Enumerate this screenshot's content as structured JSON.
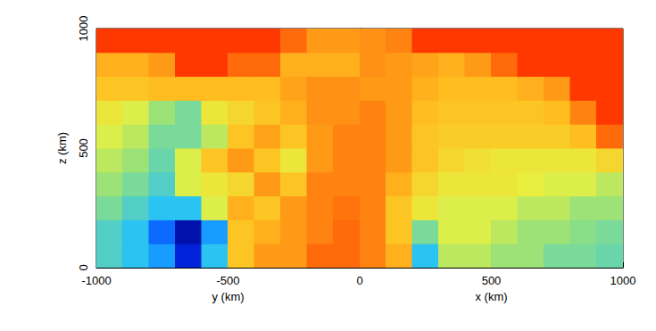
{
  "chart_data": [
    {
      "type": "heatmap",
      "x_label": "y (km)",
      "y_label": "z (km)",
      "xlim": [
        -1000,
        0
      ],
      "xticks": [
        -1000,
        -500,
        0
      ],
      "ylim": [
        0,
        1000
      ],
      "yticks": [
        0,
        500,
        1000
      ],
      "color_range": [
        0,
        1
      ],
      "x": [
        -950,
        -850,
        -750,
        -650,
        -550,
        -450,
        -350,
        -250,
        -150,
        -50
      ],
      "y": [
        50,
        150,
        250,
        350,
        450,
        550,
        650,
        750,
        850,
        950
      ],
      "cells": [
        [
          0.35,
          0.3,
          0.25,
          0.1,
          0.3,
          0.7,
          0.8,
          0.8,
          0.9,
          0.9
        ],
        [
          0.35,
          0.3,
          0.2,
          0.05,
          0.25,
          0.7,
          0.75,
          0.8,
          0.85,
          0.9
        ],
        [
          0.4,
          0.35,
          0.3,
          0.3,
          0.55,
          0.75,
          0.7,
          0.8,
          0.85,
          0.88
        ],
        [
          0.45,
          0.4,
          0.35,
          0.55,
          0.6,
          0.65,
          0.8,
          0.7,
          0.85,
          0.85
        ],
        [
          0.5,
          0.45,
          0.38,
          0.55,
          0.7,
          0.8,
          0.7,
          0.6,
          0.8,
          0.85
        ],
        [
          0.55,
          0.5,
          0.4,
          0.4,
          0.5,
          0.7,
          0.78,
          0.7,
          0.8,
          0.85
        ],
        [
          0.6,
          0.55,
          0.45,
          0.4,
          0.6,
          0.65,
          0.7,
          0.75,
          0.82,
          0.82
        ],
        [
          0.7,
          0.7,
          0.72,
          0.72,
          0.72,
          0.72,
          0.72,
          0.78,
          0.82,
          0.82
        ],
        [
          0.75,
          0.75,
          0.8,
          1,
          1,
          0.9,
          0.9,
          0.75,
          0.75,
          0.75
        ],
        [
          1,
          1,
          1,
          1,
          1,
          1,
          1,
          0.9,
          0.8,
          0.8
        ]
      ]
    },
    {
      "type": "heatmap",
      "x_label": "x (km)",
      "xlim": [
        0,
        1000
      ],
      "xticks": [
        500,
        1000
      ],
      "ylim": [
        0,
        1000
      ],
      "yticks": [
        0,
        500,
        1000
      ],
      "tick_labels": "x",
      "color_range": [
        0,
        1
      ],
      "x": [
        50,
        150,
        250,
        350,
        450,
        550,
        650,
        750,
        850,
        950
      ],
      "y": [
        50,
        150,
        250,
        350,
        450,
        550,
        650,
        750,
        850,
        950
      ],
      "cells": [
        [
          0.85,
          0.75,
          0.3,
          0.5,
          0.5,
          0.45,
          0.45,
          0.4,
          0.4,
          0.38
        ],
        [
          0.85,
          0.7,
          0.4,
          0.55,
          0.55,
          0.5,
          0.45,
          0.45,
          0.42,
          0.4
        ],
        [
          0.85,
          0.7,
          0.6,
          0.55,
          0.55,
          0.55,
          0.5,
          0.5,
          0.45,
          0.45
        ],
        [
          0.85,
          0.75,
          0.65,
          0.6,
          0.6,
          0.6,
          0.58,
          0.55,
          0.55,
          0.5
        ],
        [
          0.85,
          0.8,
          0.7,
          0.65,
          0.62,
          0.6,
          0.6,
          0.6,
          0.6,
          0.65
        ],
        [
          0.85,
          0.8,
          0.7,
          0.68,
          0.68,
          0.68,
          0.68,
          0.68,
          0.72,
          0.9
        ],
        [
          0.85,
          0.8,
          0.72,
          0.7,
          0.7,
          0.7,
          0.7,
          0.72,
          0.85,
          1
        ],
        [
          0.8,
          0.8,
          0.75,
          0.72,
          0.72,
          0.72,
          0.75,
          0.8,
          1,
          1
        ],
        [
          0.82,
          0.8,
          0.78,
          0.75,
          0.8,
          0.9,
          1,
          1,
          1,
          1
        ],
        [
          0.82,
          0.85,
          1,
          1,
          1,
          1,
          1,
          1,
          1,
          1
        ]
      ]
    }
  ]
}
